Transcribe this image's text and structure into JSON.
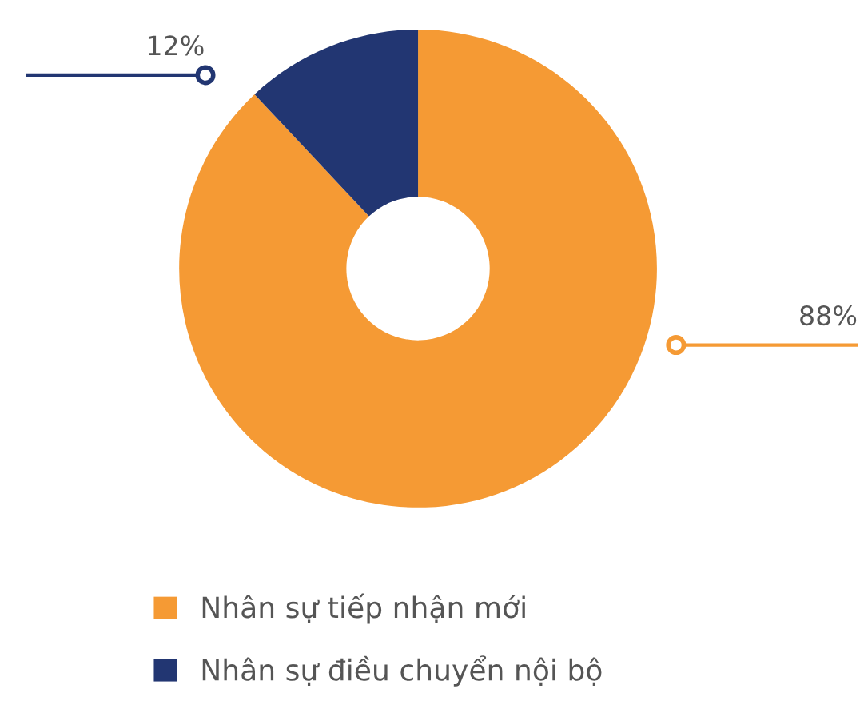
{
  "chart_data": {
    "type": "donut",
    "categories": [
      "Nhân sự tiếp nhận mới",
      "Nhân sự điều chuyển nội bộ"
    ],
    "values": [
      88,
      12
    ],
    "colors": [
      "#f59a34",
      "#223672"
    ],
    "value_labels": [
      "88%",
      "12%"
    ],
    "legend": "bottom"
  }
}
